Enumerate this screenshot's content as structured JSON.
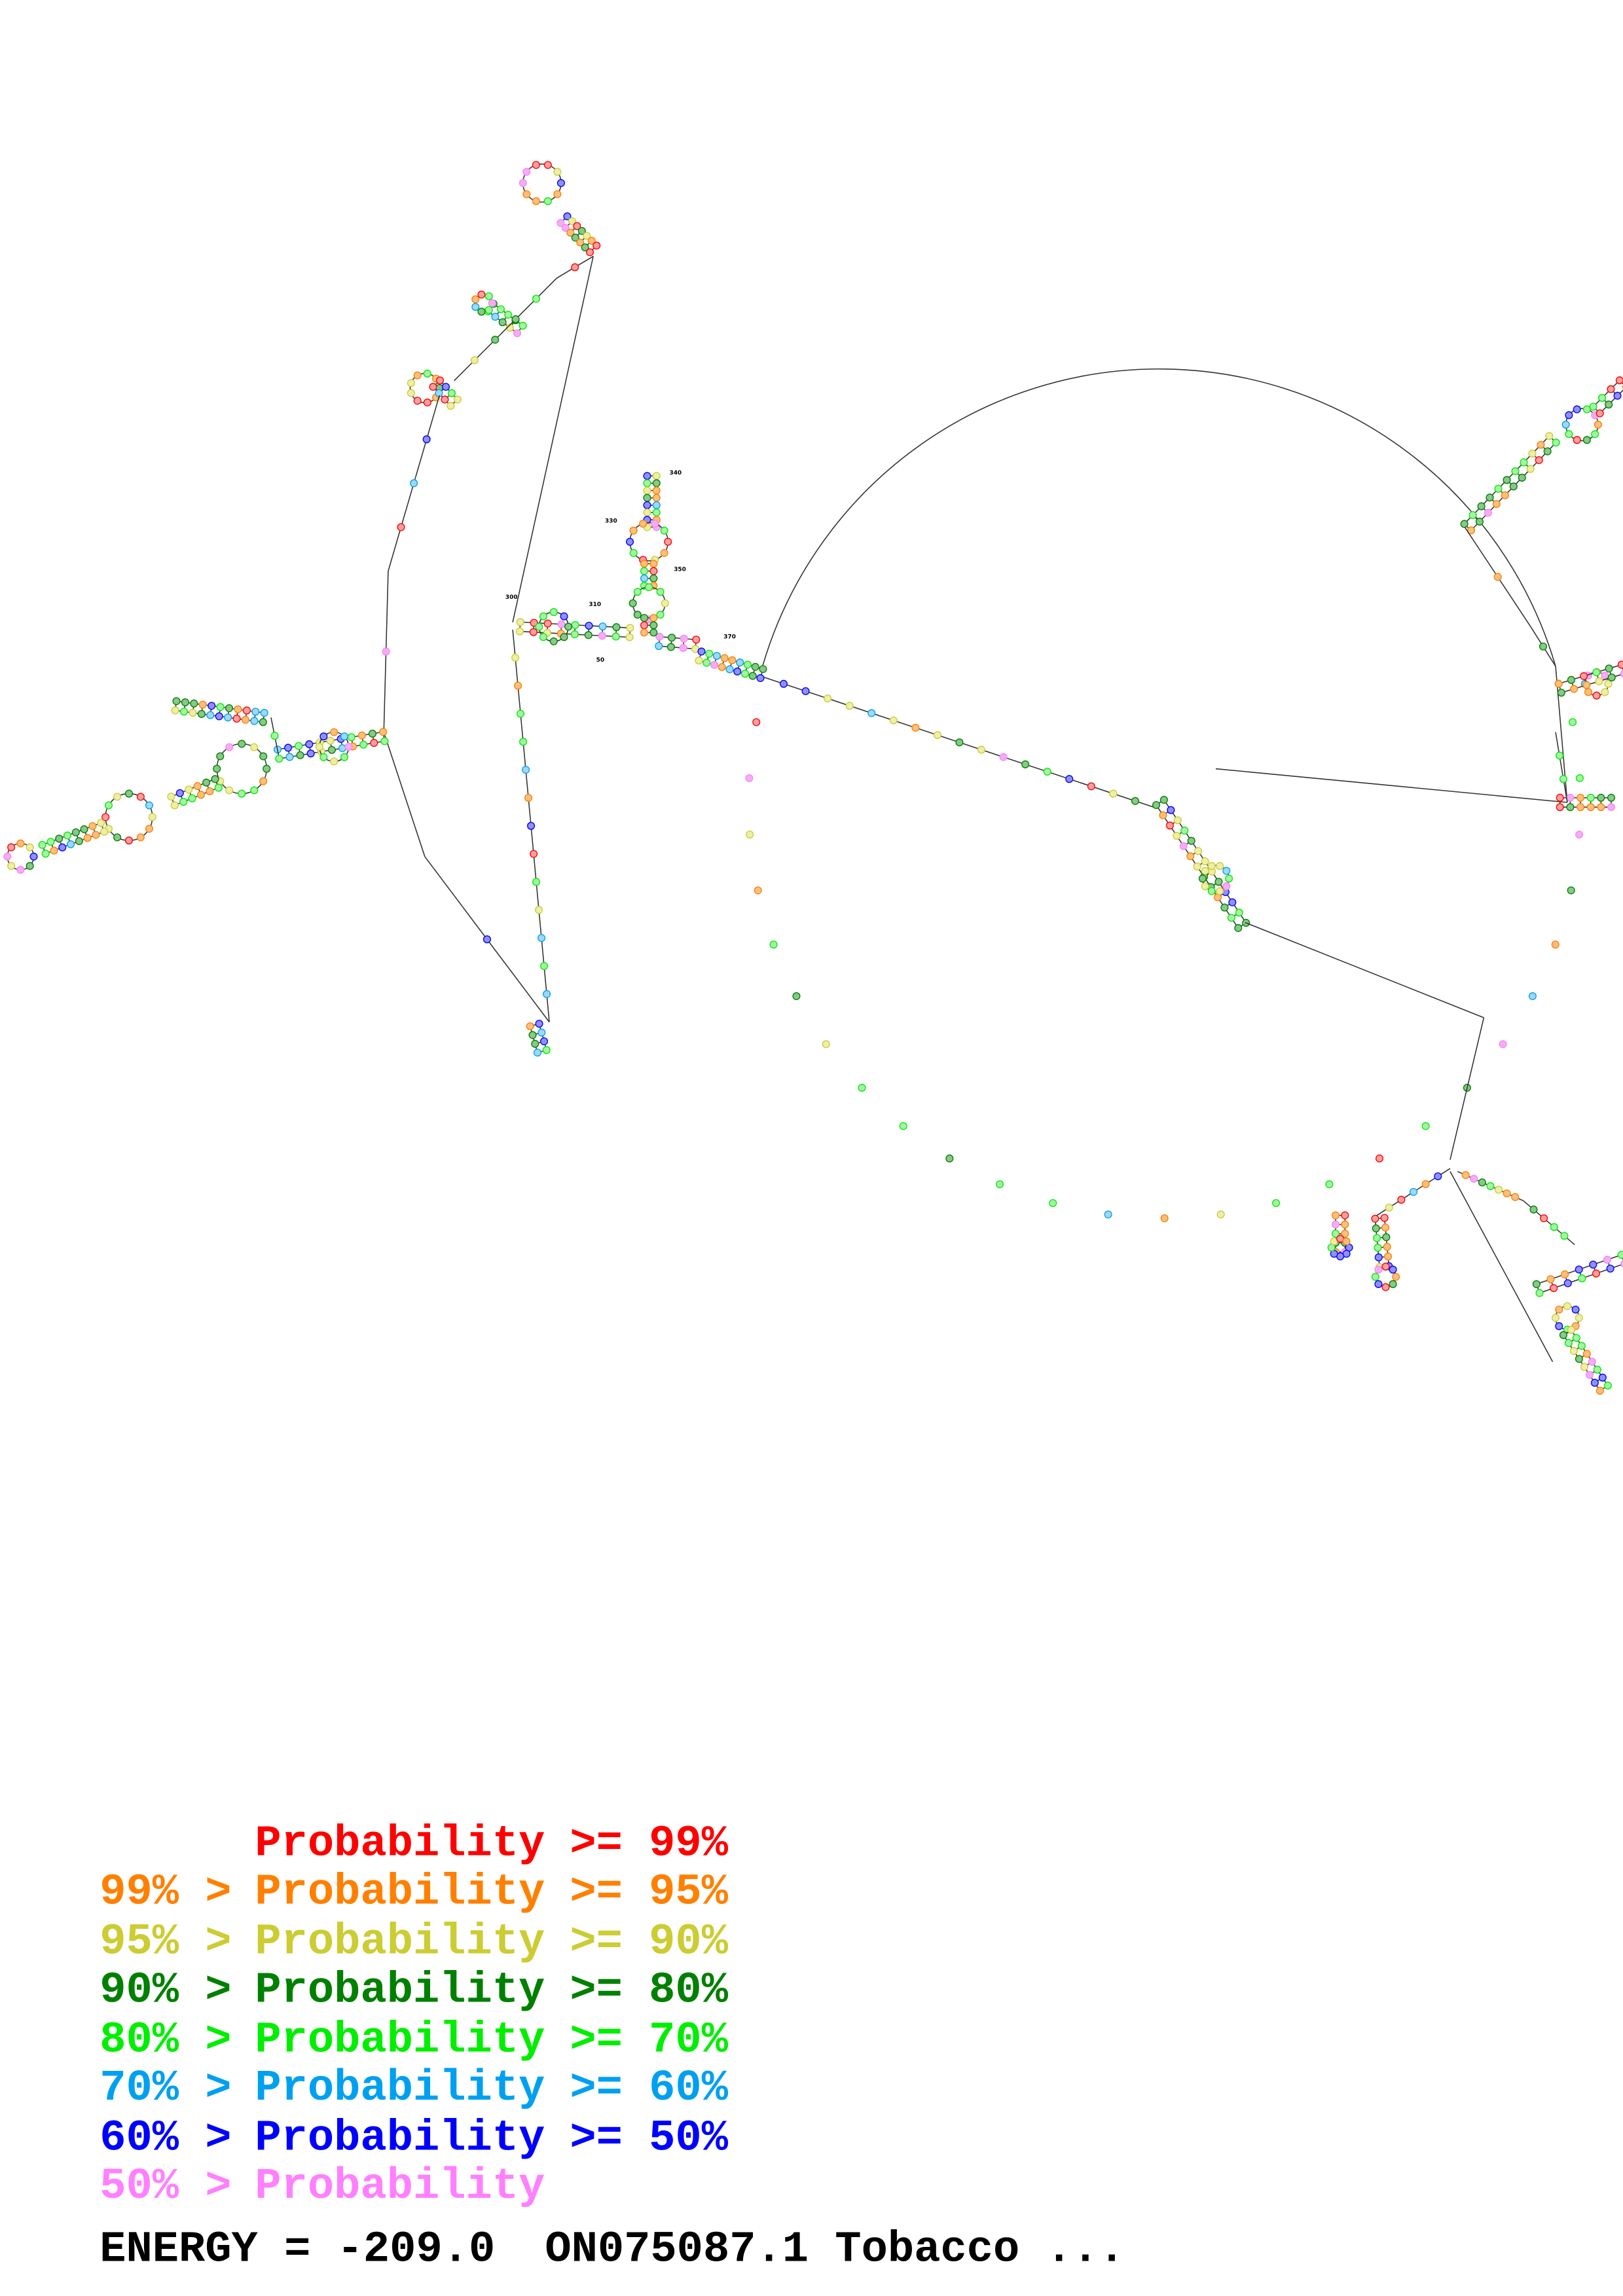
{
  "legend": [
    {
      "prefix": "",
      "label": "Probability",
      "suffix": ">= 99%",
      "color": "#ff0000"
    },
    {
      "prefix": "99% >",
      "label": "Probability",
      "suffix": ">= 95%",
      "color": "#ff8000"
    },
    {
      "prefix": "95% >",
      "label": "Probability",
      "suffix": ">= 90%",
      "color": "#cccc33"
    },
    {
      "prefix": "90% >",
      "label": "Probability",
      "suffix": ">= 80%",
      "color": "#008000"
    },
    {
      "prefix": "80% >",
      "label": "Probability",
      "suffix": ">= 70%",
      "color": "#00ee00"
    },
    {
      "prefix": "70% >",
      "label": "Probability",
      "suffix": ">= 60%",
      "color": "#00a0f0"
    },
    {
      "prefix": "60% >",
      "label": "Probability",
      "suffix": ">= 50%",
      "color": "#0000ff"
    },
    {
      "prefix": "50% >",
      "label": "Probability",
      "suffix": "",
      "color": "#ff80ff"
    }
  ],
  "footer": {
    "energy_label": "ENERGY = -209.0",
    "sequence_name": "ON075087.1 Tobacco ..."
  },
  "position_labels": [
    "300",
    "310",
    "330",
    "340",
    "350",
    "370",
    "50"
  ]
}
